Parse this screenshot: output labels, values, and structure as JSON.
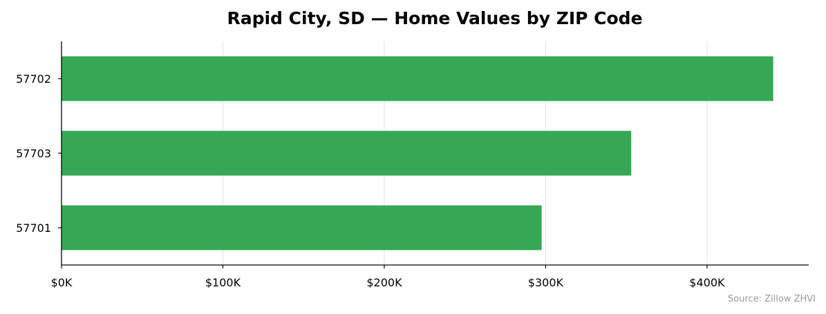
{
  "chart_data": {
    "type": "bar",
    "orientation": "horizontal",
    "title": "Rapid City, SD — Home Values by ZIP Code",
    "xlabel": "",
    "ylabel": "",
    "categories": [
      "57702",
      "57703",
      "57701"
    ],
    "values": [
      441000,
      353000,
      297500
    ],
    "xlim": [
      0,
      463000
    ],
    "xticks": [
      0,
      100000,
      200000,
      300000,
      400000
    ],
    "xtick_labels": [
      "$0K",
      "$100K",
      "$200K",
      "$300K",
      "$400K"
    ],
    "grid": "vertical",
    "bar_color": "#36a855",
    "source": "Source: Zillow ZHVI"
  }
}
